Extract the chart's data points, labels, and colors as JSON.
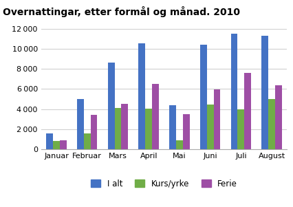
{
  "title": "Overnattingar, etter formål og månad. 2010",
  "categories": [
    "Januar",
    "Februar",
    "Mars",
    "April",
    "Mai",
    "Juni",
    "Juli",
    "August"
  ],
  "series": {
    "I alt": [
      1550,
      5000,
      8650,
      10550,
      4350,
      10400,
      11500,
      11300
    ],
    "Kurs/yrke": [
      800,
      1550,
      4100,
      4050,
      850,
      4450,
      3950,
      5000
    ],
    "Ferie": [
      900,
      3450,
      4500,
      6500,
      3500,
      5950,
      7600,
      6350
    ]
  },
  "colors": {
    "I alt": "#4472C4",
    "Kurs/yrke": "#70AD47",
    "Ferie": "#9E4EA5"
  },
  "ylim": [
    0,
    12000
  ],
  "yticks": [
    0,
    2000,
    4000,
    6000,
    8000,
    10000,
    12000
  ],
  "legend_labels": [
    "I alt",
    "Kurs/yrke",
    "Ferie"
  ],
  "background_color": "#ffffff",
  "grid_color": "#d0d0d0",
  "title_fontsize": 10,
  "tick_fontsize": 8,
  "legend_fontsize": 8.5,
  "bar_width": 0.22
}
